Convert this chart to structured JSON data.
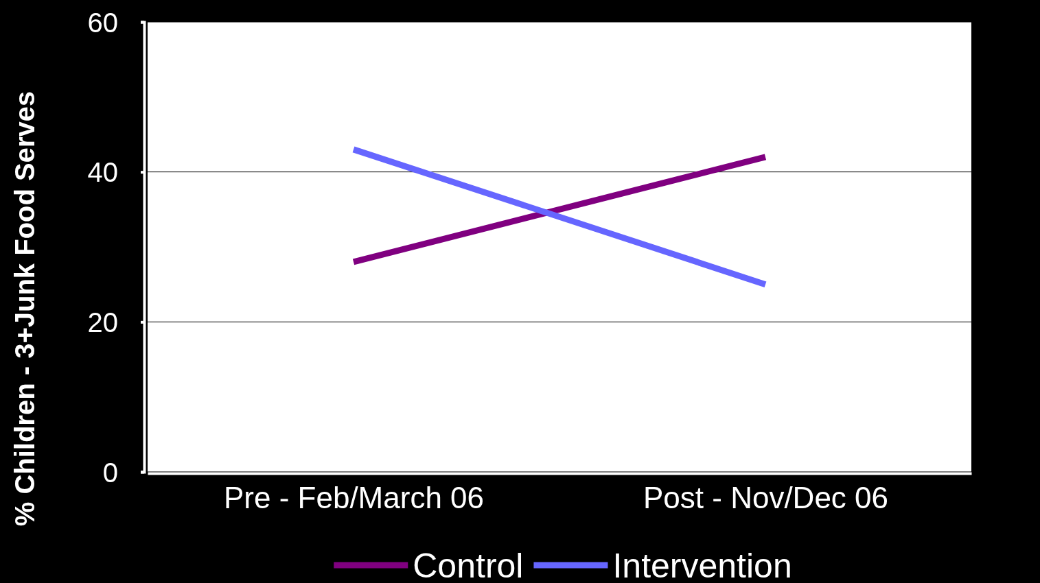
{
  "chart_data": {
    "type": "line",
    "ylabel": "% Children - 3+Junk Food Serves",
    "categories": [
      "Pre - Feb/March 06",
      "Post - Nov/Dec 06"
    ],
    "series": [
      {
        "name": "Control",
        "color": "#800080",
        "values": [
          28,
          42
        ]
      },
      {
        "name": "Intervention",
        "color": "#6666ff",
        "values": [
          43,
          25
        ]
      }
    ],
    "ylim": [
      0,
      60
    ],
    "yticks": [
      0,
      20,
      40,
      60
    ],
    "grid": "y",
    "legend": "bottom",
    "marker": "none",
    "line_style": "solid"
  }
}
